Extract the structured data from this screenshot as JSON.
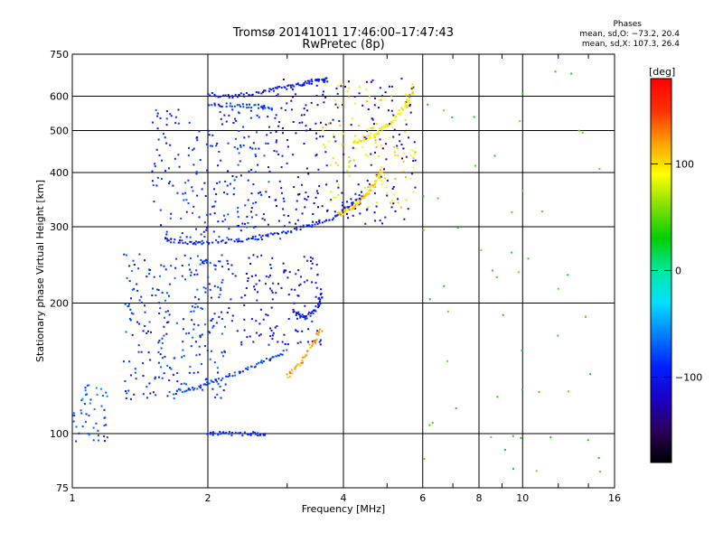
{
  "header": {
    "title_line1": "Tromsø 20141011 17:46:00–17:47:43",
    "title_line2": "RwPretec (8p)"
  },
  "phases": {
    "title": "Phases",
    "o_line": "mean, sd,O: −73.2, 20.4",
    "x_line": "mean, sd,X: 107.3, 26.4"
  },
  "colorbar": {
    "unit_label": "[deg]",
    "ticks": [
      {
        "value": 100,
        "label": "100"
      },
      {
        "value": 0,
        "label": "0"
      },
      {
        "value": -100,
        "label": "−100"
      }
    ],
    "range": [
      -180,
      180
    ],
    "colors": [
      "#000000",
      "#2a005a",
      "#1a00c8",
      "#0020ff",
      "#0080ff",
      "#00e0ff",
      "#00e8a0",
      "#00d000",
      "#80e000",
      "#ffff00",
      "#ffa000",
      "#ff3000",
      "#ff0000"
    ]
  },
  "chart_data": {
    "type": "scatter",
    "title": "Tromsø 20141011 17:46:00–17:47:43",
    "subtitle": "RwPretec (8p)",
    "xlabel": "Frequency [MHz]",
    "ylabel": "Stationary phase Virtual Height [km]",
    "x_scale": "log",
    "y_scale": "log",
    "xlim": [
      1,
      16
    ],
    "ylim": [
      75,
      750
    ],
    "grid": true,
    "x_ticks": [
      1,
      2,
      4,
      6,
      8,
      10,
      16
    ],
    "x_tick_labels": [
      "1",
      "2",
      "4",
      "6",
      "8",
      "10",
      "16"
    ],
    "y_ticks": [
      75,
      100,
      200,
      300,
      400,
      500,
      600,
      750
    ],
    "y_tick_labels": [
      "75",
      "100",
      "200",
      "300",
      "400",
      "500",
      "600",
      "750"
    ],
    "color_quantity": "phase [deg]",
    "traces": [
      {
        "name": "",
        "phase": -95,
        "x": [
          1.6,
          1.8,
          2.0,
          2.3,
          2.6,
          3.0,
          3.4,
          3.8,
          4.1,
          4.4
        ],
        "y": [
          280,
          275,
          276,
          278,
          283,
          292,
          302,
          315,
          332,
          355
        ]
      },
      {
        "name": "",
        "phase": 105,
        "x": [
          3.9,
          4.1,
          4.3,
          4.5,
          4.7,
          4.9
        ],
        "y": [
          320,
          328,
          340,
          356,
          378,
          410
        ]
      },
      {
        "name": "",
        "phase": -100,
        "x": [
          2.0,
          2.3,
          2.6,
          2.9,
          3.2,
          3.5,
          3.7
        ],
        "y": [
          605,
          600,
          612,
          625,
          640,
          650,
          655
        ]
      },
      {
        "name": "",
        "phase": -85,
        "x": [
          2.0,
          2.3,
          2.6,
          2.8
        ],
        "y": [
          575,
          572,
          568,
          562
        ]
      },
      {
        "name": "",
        "phase": -90,
        "x": [
          2.0,
          2.2,
          2.5,
          2.7
        ],
        "y": [
          100,
          100,
          100,
          100
        ]
      },
      {
        "name": "",
        "phase": -80,
        "x": [
          1.7,
          1.9,
          2.1,
          2.4,
          2.7,
          3.0
        ],
        "y": [
          125,
          128,
          133,
          140,
          148,
          155
        ]
      },
      {
        "name": "",
        "phase": -100,
        "x": [
          3.1,
          3.3,
          3.5,
          3.6
        ],
        "y": [
          190,
          185,
          196,
          212
        ]
      },
      {
        "name": "",
        "phase": 120,
        "x": [
          3.0,
          3.2,
          3.4,
          3.6
        ],
        "y": [
          135,
          145,
          160,
          175
        ]
      },
      {
        "name": "",
        "phase": 95,
        "x": [
          4.2,
          4.5,
          4.8,
          5.1,
          5.4,
          5.7
        ],
        "y": [
          470,
          480,
          500,
          520,
          560,
          610
        ]
      }
    ],
    "scatter_regions": [
      {
        "x_range": [
          1.0,
          1.2
        ],
        "y_range": [
          95,
          130
        ],
        "phase": -75,
        "count": 50
      },
      {
        "x_range": [
          1.3,
          2.2
        ],
        "y_range": [
          120,
          260
        ],
        "phase": -85,
        "count": 260
      },
      {
        "x_range": [
          1.5,
          3.0
        ],
        "y_range": [
          280,
          560
        ],
        "phase": -90,
        "count": 240
      },
      {
        "x_range": [
          2.2,
          3.6
        ],
        "y_range": [
          160,
          260
        ],
        "phase": -105,
        "count": 140
      },
      {
        "x_range": [
          2.8,
          5.8
        ],
        "y_range": [
          300,
          660
        ],
        "phase": -115,
        "count": 220
      },
      {
        "x_range": [
          3.6,
          5.8
        ],
        "y_range": [
          330,
          640
        ],
        "phase": 100,
        "count": 120
      },
      {
        "x_range": [
          6.0,
          15.0
        ],
        "y_range": [
          80,
          700
        ],
        "phase": 40,
        "count": 55
      }
    ]
  }
}
